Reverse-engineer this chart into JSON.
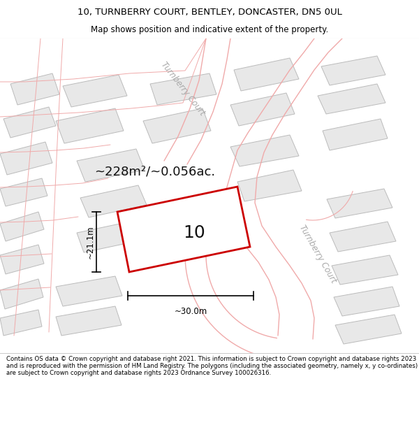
{
  "title_line1": "10, TURNBERRY COURT, BENTLEY, DONCASTER, DN5 0UL",
  "title_line2": "Map shows position and indicative extent of the property.",
  "footer_text": "Contains OS data © Crown copyright and database right 2021. This information is subject to Crown copyright and database rights 2023 and is reproduced with the permission of HM Land Registry. The polygons (including the associated geometry, namely x, y co-ordinates) are subject to Crown copyright and database rights 2023 Ordnance Survey 100026316.",
  "map_bg_color": "#f5f5f5",
  "road_line_color": "#f0aaaa",
  "road_label_color": "#aaaaaa",
  "building_fc": "#e8e8e8",
  "building_ec": "#bbbbbb",
  "highlight_outline": "#cc0000",
  "area_text": "~228m²/~0.056ac.",
  "property_number": "10",
  "dim_width": "~30.0m",
  "dim_height": "~21.1m",
  "road_label_top": "Turnberry Court",
  "road_label_right": "Turnberry Court",
  "title_bg": "#ffffff",
  "footer_bg": "#ffffff"
}
